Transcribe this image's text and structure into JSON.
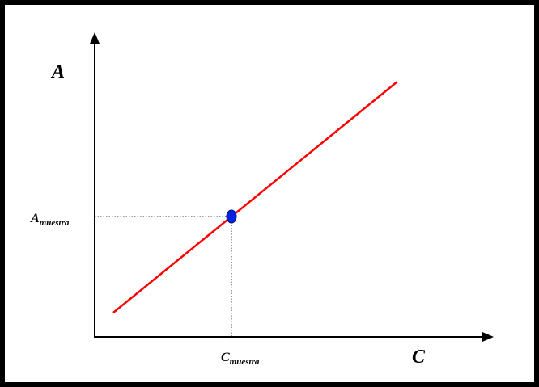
{
  "axes": {
    "y_label": "A",
    "x_label": "C"
  },
  "sample_point": {
    "y_label": "A",
    "y_subscript": "muestra",
    "x_label": "C",
    "x_subscript": "muestra"
  },
  "colors": {
    "line": "#ff0000",
    "point": "#0022dd",
    "point_outline": "#00106e",
    "axis": "#000000",
    "frame": "#000000"
  }
}
